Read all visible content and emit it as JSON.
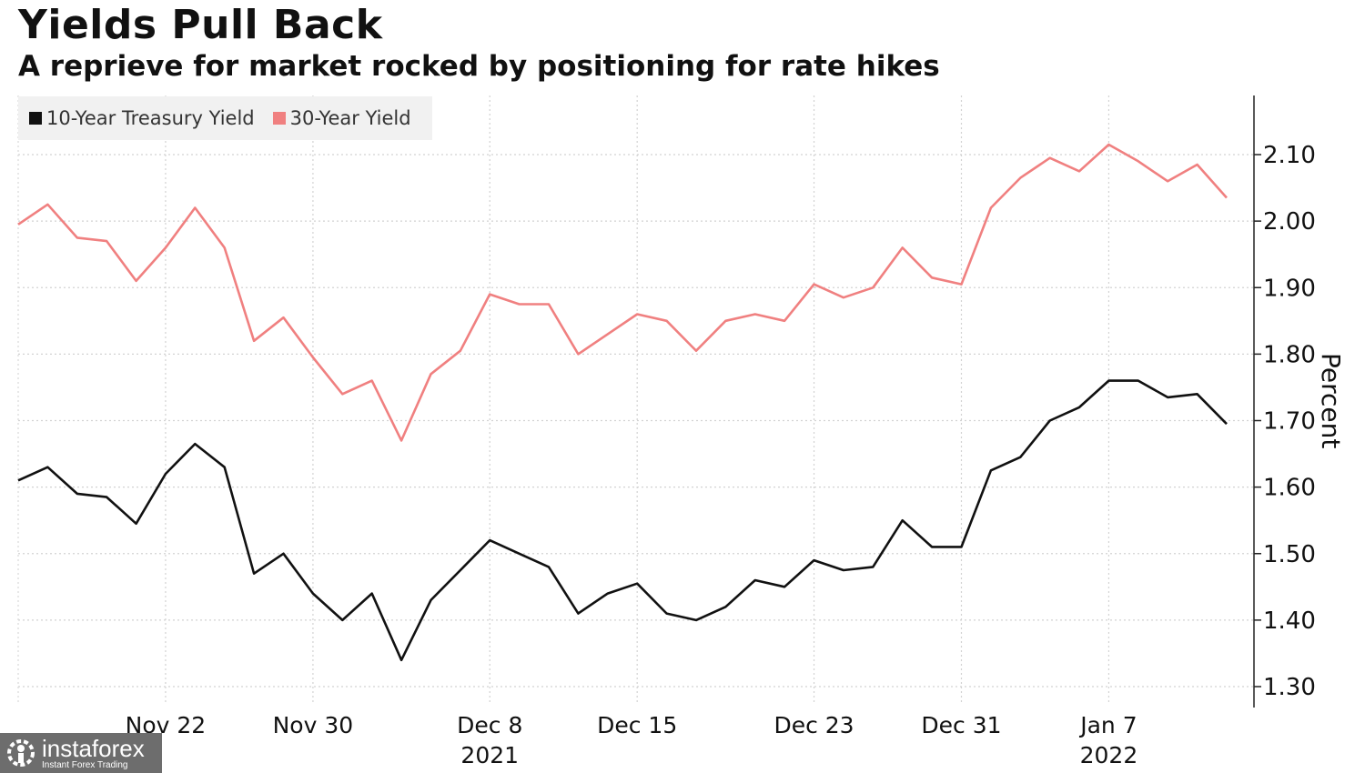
{
  "title": "Yields Pull Back",
  "subtitle": "A reprieve for market rocked by positioning for rate hikes",
  "logo": {
    "name": "instaforex",
    "tagline": "Instant Forex Trading",
    "icon": "gear-person-icon"
  },
  "colors": {
    "series_10y": "#111111",
    "series_30y": "#f08080",
    "grid": "#cfcfcf"
  },
  "chart_data": {
    "type": "line",
    "ylabel": "Percent",
    "ylim": [
      1.28,
      2.18
    ],
    "yticks": [
      "1.30",
      "1.40",
      "1.50",
      "1.60",
      "1.70",
      "1.80",
      "1.90",
      "2.00",
      "2.10"
    ],
    "xticks": [
      {
        "label": "Nov 22",
        "sub": "",
        "index": 5
      },
      {
        "label": "Nov 30",
        "sub": "",
        "index": 10
      },
      {
        "label": "Dec 8",
        "sub": "2021",
        "index": 16
      },
      {
        "label": "Dec 15",
        "sub": "",
        "index": 21
      },
      {
        "label": "Dec 23",
        "sub": "",
        "index": 27
      },
      {
        "label": "Dec 31",
        "sub": "",
        "index": 32
      },
      {
        "label": "Jan 7",
        "sub": "2022",
        "index": 37
      }
    ],
    "legend_position": "top-left",
    "grid": true,
    "series": [
      {
        "name": "10-Year Treasury Yield",
        "color": "#111111",
        "values": [
          1.61,
          1.63,
          1.59,
          1.585,
          1.545,
          1.62,
          1.665,
          1.63,
          1.47,
          1.5,
          1.44,
          1.4,
          1.44,
          1.34,
          1.43,
          1.475,
          1.52,
          1.5,
          1.48,
          1.41,
          1.44,
          1.455,
          1.41,
          1.4,
          1.42,
          1.46,
          1.45,
          1.49,
          1.475,
          1.48,
          1.55,
          1.51,
          1.51,
          1.625,
          1.645,
          1.7,
          1.72,
          1.76,
          1.76,
          1.735,
          1.74,
          1.695
        ]
      },
      {
        "name": "30-Year Yield",
        "color": "#f08080",
        "values": [
          1.995,
          2.025,
          1.975,
          1.97,
          1.91,
          1.96,
          2.02,
          1.96,
          1.82,
          1.855,
          1.795,
          1.74,
          1.76,
          1.67,
          1.77,
          1.805,
          1.89,
          1.875,
          1.875,
          1.8,
          1.83,
          1.86,
          1.85,
          1.805,
          1.85,
          1.86,
          1.85,
          1.905,
          1.885,
          1.9,
          1.96,
          1.915,
          1.905,
          2.02,
          2.065,
          2.095,
          2.075,
          2.115,
          2.09,
          2.06,
          2.085,
          2.035
        ]
      }
    ]
  }
}
